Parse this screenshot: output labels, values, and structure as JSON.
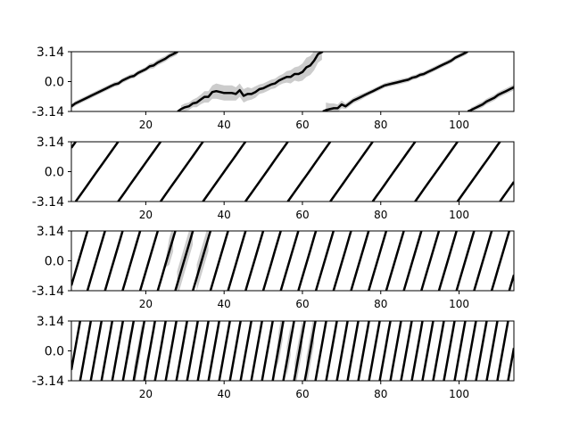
{
  "chart_data": [
    {
      "type": "line",
      "title": "",
      "xlabel": "",
      "ylabel": "",
      "xlim": [
        1,
        114
      ],
      "ylim": [
        -3.14,
        3.14
      ],
      "ytick_labels": [
        "3.14",
        "0.0",
        "-3.14"
      ],
      "xticks": [
        20,
        40,
        60,
        80,
        100
      ],
      "series": [
        {
          "values": [
            -2.6,
            -2.3,
            -2.1,
            -1.9,
            -1.7,
            -1.5,
            -1.3,
            -1.1,
            -0.9,
            -0.7,
            -0.5,
            -0.3,
            -0.2,
            0.1,
            0.3,
            0.5,
            0.6,
            0.9,
            1.1,
            1.3,
            1.6,
            1.7,
            2.0,
            2.2,
            2.4,
            2.7,
            2.9,
            3.1,
            -2.9,
            -2.7,
            -2.6,
            -2.3,
            -2.2,
            -1.9,
            -1.6,
            -1.6,
            -1.1,
            -1.0,
            -1.1,
            -1.2,
            -1.2,
            -1.2,
            -1.3,
            -0.9,
            -1.5,
            -1.3,
            -1.3,
            -1.1,
            -0.8,
            -0.7,
            -0.5,
            -0.3,
            -0.2,
            0.1,
            0.3,
            0.5,
            0.5,
            0.8,
            0.8,
            1.0,
            1.5,
            1.7,
            2.2,
            2.9,
            3.1,
            -3.0,
            -2.9,
            -2.8,
            -2.8,
            -2.4,
            -2.6,
            -2.3,
            -2.0,
            -1.8,
            -1.6,
            -1.4,
            -1.2,
            -1.0,
            -0.8,
            -0.6,
            -0.4,
            -0.3,
            -0.2,
            -0.1,
            0.0,
            0.1,
            0.2,
            0.4,
            0.5,
            0.7,
            0.8,
            1.0,
            1.2,
            1.4,
            1.6,
            1.8,
            2.0,
            2.2,
            2.5,
            2.7,
            2.9,
            3.1,
            -3.0,
            -2.8,
            -2.6,
            -2.4,
            -2.1,
            -1.9,
            -1.7,
            -1.4,
            -1.2,
            -1.0,
            -0.8,
            -0.6
          ],
          "band": [
            0.25,
            0.25,
            0.25,
            0.25,
            0.25,
            0.25,
            0.25,
            0.25,
            0.25,
            0.25,
            0.25,
            0.25,
            0.25,
            0.25,
            0.25,
            0.25,
            0.25,
            0.25,
            0.25,
            0.25,
            0.3,
            0.3,
            0.3,
            0.3,
            0.3,
            0.3,
            0.3,
            0.3,
            0.4,
            0.4,
            0.4,
            0.4,
            0.5,
            0.5,
            0.6,
            0.6,
            0.7,
            0.8,
            0.8,
            0.8,
            0.8,
            0.8,
            0.7,
            0.7,
            0.7,
            0.7,
            0.6,
            0.6,
            0.5,
            0.5,
            0.5,
            0.5,
            0.5,
            0.5,
            0.5,
            0.6,
            0.7,
            0.7,
            0.8,
            0.9,
            1.0,
            1.0,
            1.0,
            0.9,
            0.8,
            0.8,
            0.6,
            0.5,
            0.4,
            0.4,
            0.3,
            0.3,
            0.3,
            0.3,
            0.3,
            0.25,
            0.25,
            0.25,
            0.25,
            0.25,
            0.25,
            0.25,
            0.25,
            0.25,
            0.25,
            0.25,
            0.25,
            0.25,
            0.25,
            0.25,
            0.25,
            0.25,
            0.25,
            0.25,
            0.25,
            0.25,
            0.25,
            0.25,
            0.25,
            0.25,
            0.25,
            0.25,
            0.25,
            0.25,
            0.3,
            0.3,
            0.3,
            0.3,
            0.3,
            0.3,
            0.3,
            0.3,
            0.3,
            0.3
          ]
        }
      ]
    },
    {
      "type": "line",
      "title": "",
      "xlabel": "",
      "ylabel": "",
      "xlim": [
        1,
        114
      ],
      "ylim": [
        -3.14,
        3.14
      ],
      "ytick_labels": [
        "3.14",
        "0.0",
        "-3.14"
      ],
      "xticks": [
        20,
        40,
        60,
        80,
        100
      ],
      "series": [
        {
          "start_x": 1,
          "start_phase": 2.5,
          "slope": 0.58,
          "band": 0.12
        }
      ]
    },
    {
      "type": "line",
      "title": "",
      "xlabel": "",
      "ylabel": "",
      "xlim": [
        1,
        114
      ],
      "ylim": [
        -3.14,
        3.14
      ],
      "ytick_labels": [
        "3.14",
        "0.0",
        "-3.14"
      ],
      "xticks": [
        20,
        40,
        60,
        80,
        100
      ],
      "series": [
        {
          "start_x": 1,
          "start_phase": -2.6,
          "slope": 1.4,
          "band": 0.3,
          "noisy_range": [
            26,
            36
          ],
          "noisy_band": 1.4
        }
      ]
    },
    {
      "type": "line",
      "title": "",
      "xlabel": "",
      "ylabel": "",
      "xlim": [
        1,
        114
      ],
      "ylim": [
        -3.14,
        3.14
      ],
      "ytick_labels": [
        "3.14",
        "0.0",
        "-3.14"
      ],
      "xticks": [
        20,
        40,
        60,
        80,
        100
      ],
      "series": [
        {
          "start_x": 1,
          "start_phase": -2.0,
          "slope": 2.3,
          "band": 0.4,
          "noisy_range": [
            16,
            20
          ],
          "noisy_band": 1.2,
          "noisy_range_2": [
            54,
            63
          ],
          "noisy_band_2": 1.6
        }
      ]
    }
  ]
}
